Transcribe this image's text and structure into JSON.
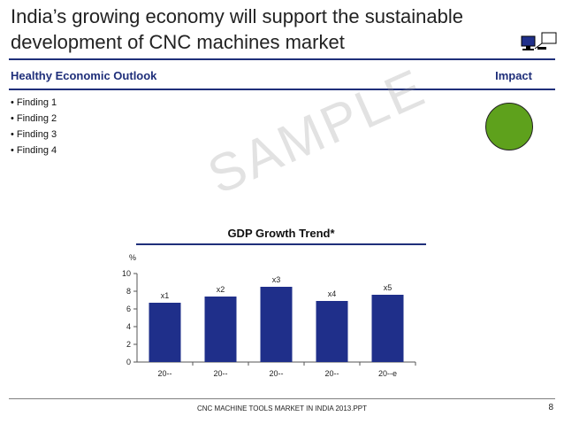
{
  "slide": {
    "title_line1": "India’s growing economy will support the sustainable",
    "title_line2": "development of CNC machines market",
    "section_heading": "Healthy Economic Outlook",
    "impact_heading": "Impact",
    "findings": [
      {
        "text": "Finding 1"
      },
      {
        "text": "Finding 2"
      },
      {
        "text": "Finding 3"
      },
      {
        "text": "Finding 4"
      }
    ],
    "bullet": "•",
    "watermark": "SAMPLE",
    "impact_color": "#5ea11c",
    "footer": "CNC MACHINE TOOLS MARKET IN INDIA 2013.PPT",
    "page_number": "8",
    "icon": "computer-monitor-icon"
  },
  "chart_data": {
    "type": "bar",
    "title": "GDP Growth Trend*",
    "ylabel": "%",
    "categories": [
      "20--",
      "20--",
      "20--",
      "20--",
      "20--e"
    ],
    "values": [
      6.7,
      7.4,
      8.5,
      6.9,
      7.6
    ],
    "data_labels": [
      "x1",
      "x2",
      "x3",
      "x4",
      "x5"
    ],
    "ylim": [
      0,
      10
    ],
    "yticks": [
      0,
      2,
      4,
      6,
      8,
      10
    ],
    "bar_color": "#1f2f8a",
    "grid": false,
    "legend": "none"
  }
}
